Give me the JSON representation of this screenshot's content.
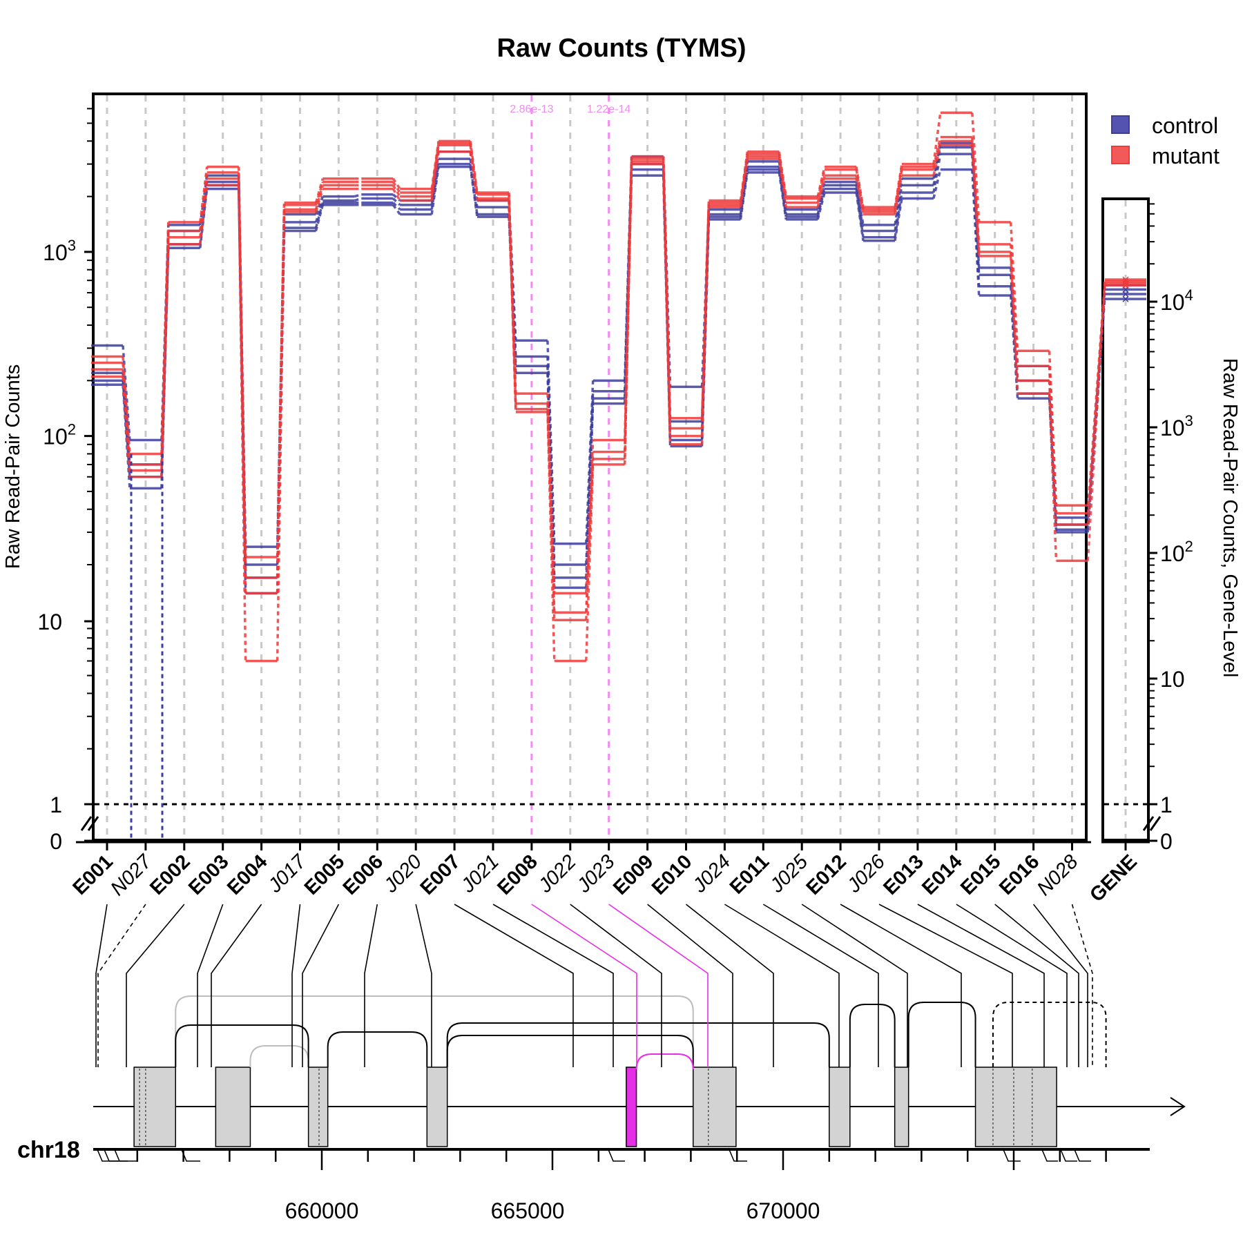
{
  "chart_data": {
    "type": "line",
    "title": "Raw Counts (TYMS)",
    "ylabel": "Raw Read-Pair Counts",
    "ylabel_right": "Raw Read-Pair Counts, Gene-Level",
    "y_scale": "log",
    "y_tick_labels": [
      "0",
      "1",
      "10",
      "10^2",
      "10^3"
    ],
    "y_tick_labels_right": [
      "0",
      "1",
      "10",
      "10^2",
      "10^3",
      "10^4"
    ],
    "legend": [
      {
        "name": "control",
        "color": "#3d3d9e"
      },
      {
        "name": "mutant",
        "color": "#ef3a3a"
      }
    ],
    "legend_position": "top-right",
    "features": [
      "E001",
      "N027",
      "E002",
      "E003",
      "E004",
      "J017",
      "E005",
      "E006",
      "J020",
      "E007",
      "J021",
      "E008",
      "J022",
      "J023",
      "E009",
      "E010",
      "J024",
      "E011",
      "J025",
      "E012",
      "J026",
      "E013",
      "E014",
      "E015",
      "E016",
      "N028"
    ],
    "gene_label": "GENE",
    "significant_features": [
      {
        "feature": "E008",
        "pvalue": "2.86e-13"
      },
      {
        "feature": "J023",
        "pvalue": "1.22e-14"
      }
    ],
    "series": [
      {
        "name": "control",
        "values": [
          [
            310,
            220,
            200,
            190
          ],
          [
            95,
            70,
            60,
            52
          ],
          [
            1400,
            1300,
            1100,
            1050
          ],
          [
            2600,
            2400,
            2300,
            2200
          ],
          [
            25,
            20,
            17,
            14
          ],
          [
            1600,
            1450,
            1350,
            1300
          ],
          [
            2000,
            1900,
            1850,
            1800
          ],
          [
            2050,
            1950,
            1850,
            1800
          ],
          [
            1900,
            1800,
            1700,
            1600
          ],
          [
            3500,
            3200,
            3000,
            2900
          ],
          [
            1900,
            1750,
            1600,
            1550
          ],
          [
            330,
            270,
            240,
            220
          ],
          [
            26,
            20,
            17,
            15
          ],
          [
            200,
            175,
            160,
            150
          ],
          [
            3300,
            3000,
            2800,
            2600
          ],
          [
            185,
            120,
            95,
            88
          ],
          [
            1700,
            1600,
            1550,
            1500
          ],
          [
            3100,
            2900,
            2800,
            2700
          ],
          [
            1700,
            1600,
            1550,
            1500
          ],
          [
            2400,
            2300,
            2200,
            2100
          ],
          [
            1400,
            1300,
            1200,
            1150
          ],
          [
            2500,
            2300,
            2100,
            1950
          ],
          [
            3900,
            3700,
            3400,
            2800
          ],
          [
            820,
            750,
            650,
            580
          ],
          [
            240,
            200,
            170,
            160
          ],
          [
            36,
            33,
            31,
            30
          ]
        ]
      },
      {
        "name": "mutant",
        "values": [
          [
            270,
            250,
            230,
            210
          ],
          [
            80,
            70,
            65,
            60
          ],
          [
            1450,
            1300,
            1200,
            1100
          ],
          [
            2900,
            2700,
            2500,
            2300
          ],
          [
            22,
            17,
            14,
            6
          ],
          [
            1850,
            1800,
            1700,
            1650
          ],
          [
            2500,
            2400,
            2300,
            2200
          ],
          [
            2500,
            2400,
            2300,
            2200
          ],
          [
            2200,
            2100,
            2000,
            1900
          ],
          [
            4000,
            3900,
            3800,
            3500
          ],
          [
            2100,
            2050,
            1950,
            1900
          ],
          [
            170,
            150,
            140,
            135
          ],
          [
            14,
            11,
            10,
            6
          ],
          [
            95,
            82,
            75,
            70
          ],
          [
            3300,
            3200,
            3100,
            3000
          ],
          [
            125,
            110,
            100,
            90
          ],
          [
            1900,
            1850,
            1800,
            1750
          ],
          [
            3500,
            3400,
            3300,
            3200
          ],
          [
            2000,
            1950,
            1850,
            1750
          ],
          [
            2900,
            2800,
            2600,
            2500
          ],
          [
            1750,
            1700,
            1650,
            1600
          ],
          [
            3000,
            2900,
            2800,
            2600
          ],
          [
            5700,
            4200,
            4000,
            3800
          ],
          [
            1450,
            1100,
            1000,
            950
          ],
          [
            290,
            240,
            200,
            170
          ],
          [
            42,
            38,
            33,
            21
          ]
        ]
      }
    ],
    "gene_level": {
      "control": [
        13500,
        12500,
        11500,
        10500
      ],
      "mutant": [
        15000,
        14500,
        14000,
        13500
      ]
    },
    "genome_axis": {
      "chromosome": "chr18",
      "tick_labels": [
        "660000",
        "665000",
        "670000"
      ]
    }
  }
}
